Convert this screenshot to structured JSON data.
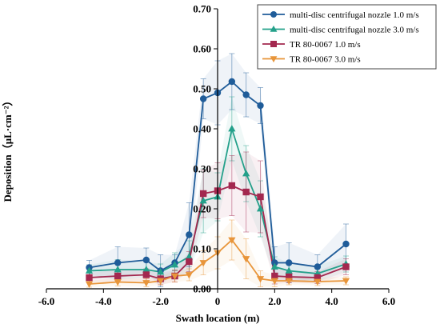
{
  "chart_data": {
    "type": "line",
    "xlabel": "Swath location (m)",
    "ylabel": "Deposition（μL·cm⁻²）",
    "xlim": [
      -6.0,
      6.0
    ],
    "ylim": [
      0.0,
      0.7
    ],
    "x_ticks": [
      "-6.0",
      "-4.0",
      "-2.0",
      "0",
      "2.0",
      "4.0",
      "6.0"
    ],
    "x_tick_values": [
      -6,
      -4,
      -2,
      0,
      2,
      4,
      6
    ],
    "y_ticks": [
      "0.00",
      "0.10",
      "0.20",
      "0.30",
      "0.40",
      "0.50",
      "0.60",
      "0.70"
    ],
    "y_tick_values": [
      0,
      0.1,
      0.2,
      0.3,
      0.4,
      0.5,
      0.6,
      0.7
    ],
    "legend_position": "top-right",
    "grid": false,
    "x": [
      -4.5,
      -3.5,
      -2.5,
      -2.0,
      -1.5,
      -1.0,
      -0.5,
      0.0,
      0.5,
      1.0,
      1.5,
      2.0,
      2.5,
      3.5,
      4.5
    ],
    "series": [
      {
        "name": "multi-disc centrifugal nozzle 1.0 m/s",
        "color": "#1f5c99",
        "marker": "circle",
        "values": [
          0.053,
          0.065,
          0.072,
          0.045,
          0.065,
          0.135,
          0.475,
          0.49,
          0.518,
          0.485,
          0.458,
          0.065,
          0.065,
          0.055,
          0.112
        ],
        "errors": [
          0.018,
          0.04,
          0.03,
          0.04,
          0.02,
          0.08,
          0.05,
          0.08,
          0.07,
          0.055,
          0.045,
          0.04,
          0.05,
          0.03,
          0.05
        ]
      },
      {
        "name": "multi-disc centrifugal nozzle 3.0 m/s",
        "color": "#23a08a",
        "marker": "triangle",
        "values": [
          0.045,
          0.048,
          0.048,
          0.042,
          0.06,
          0.08,
          0.22,
          0.23,
          0.4,
          0.288,
          0.2,
          0.055,
          0.045,
          0.038,
          0.062
        ],
        "errors": [
          0.015,
          0.025,
          0.02,
          0.02,
          0.03,
          0.04,
          0.08,
          0.06,
          0.08,
          0.07,
          0.07,
          0.025,
          0.02,
          0.02,
          0.02
        ]
      },
      {
        "name": "TR 80-0067 1.0 m/s",
        "color": "#a3284f",
        "marker": "square",
        "values": [
          0.028,
          0.032,
          0.035,
          0.025,
          0.032,
          0.068,
          0.238,
          0.245,
          0.258,
          0.242,
          0.23,
          0.032,
          0.03,
          0.028,
          0.055
        ],
        "errors": [
          0.012,
          0.015,
          0.015,
          0.015,
          0.015,
          0.025,
          0.06,
          0.07,
          0.075,
          0.1,
          0.09,
          0.02,
          0.015,
          0.015,
          0.02
        ]
      },
      {
        "name": "TR 80-0067 3.0 m/s",
        "color": "#e8953a",
        "marker": "triangle-down",
        "values": [
          0.012,
          0.017,
          0.015,
          0.02,
          0.032,
          0.035,
          0.065,
          0.09,
          0.122,
          0.075,
          0.025,
          0.02,
          0.02,
          0.018,
          0.02
        ],
        "errors": [
          0.008,
          0.01,
          0.01,
          0.01,
          0.015,
          0.015,
          0.03,
          0.04,
          0.05,
          0.05,
          0.02,
          0.015,
          0.01,
          0.01,
          0.01
        ]
      }
    ]
  }
}
